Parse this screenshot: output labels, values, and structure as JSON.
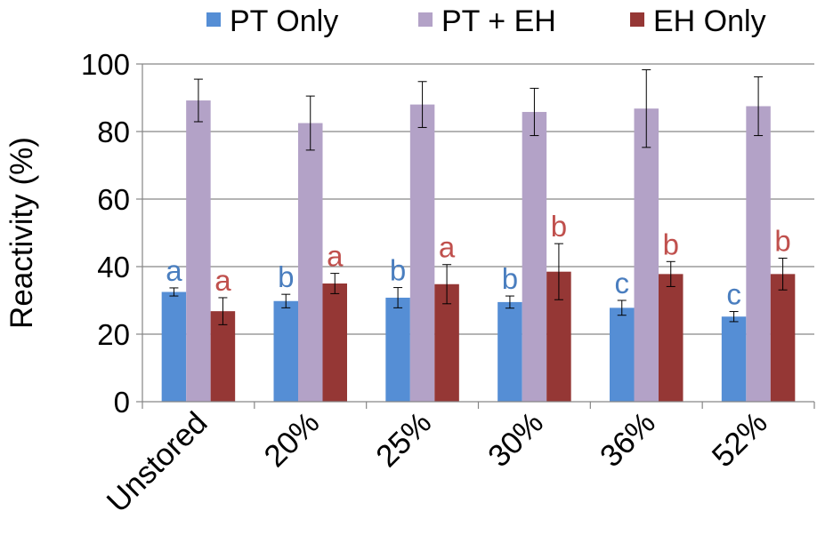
{
  "chart_data": {
    "type": "bar",
    "title": "",
    "xlabel": "",
    "ylabel": "Reactivity (%)",
    "ylim": [
      0,
      100
    ],
    "yticks": [
      0,
      20,
      40,
      60,
      80,
      100
    ],
    "grid": true,
    "legend_position": "top",
    "categories": [
      "Unstored",
      "20%",
      "25%",
      "30%",
      "36%",
      "52%"
    ],
    "series": [
      {
        "name": "PT Only",
        "color": "#558ed5",
        "values": [
          32.5,
          29.8,
          30.8,
          29.5,
          27.8,
          25.2
        ],
        "errors": [
          1.2,
          2.0,
          3.0,
          1.8,
          2.2,
          1.5
        ],
        "letters": [
          "a",
          "b",
          "b",
          "b",
          "c",
          "c"
        ],
        "letter_color": "#4a7ebf"
      },
      {
        "name": "PT + EH",
        "color": "#b3a2c7",
        "values": [
          89.2,
          82.5,
          88.0,
          85.8,
          86.8,
          87.5
        ],
        "errors": [
          6.3,
          8.0,
          6.8,
          7.0,
          11.5,
          8.7
        ],
        "letters": [],
        "letter_color": "#b3a2c7"
      },
      {
        "name": "EH Only",
        "color": "#953735",
        "values": [
          26.8,
          35.0,
          34.8,
          38.5,
          37.8,
          37.8
        ],
        "errors": [
          4.0,
          3.0,
          5.8,
          8.3,
          3.7,
          4.7
        ],
        "letters": [
          "a",
          "a",
          "a",
          "b",
          "b",
          "b"
        ],
        "letter_color": "#c0504d"
      }
    ]
  }
}
